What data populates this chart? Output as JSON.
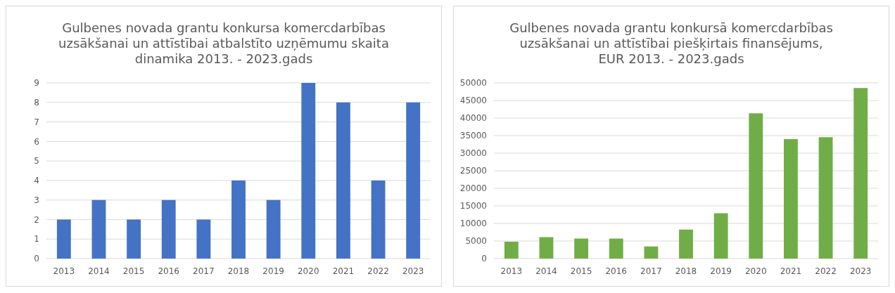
{
  "chart_data": [
    {
      "type": "bar",
      "title": "Gulbenes novada grantu konkursa komercdarbības uzsākšanai un attīstībai atbalstīto uzņēmumu skaita dinamika 2013. - 2023.gads",
      "categories": [
        "2013",
        "2014",
        "2015",
        "2016",
        "2017",
        "2018",
        "2019",
        "2020",
        "2021",
        "2022",
        "2023"
      ],
      "values": [
        2,
        3,
        2,
        3,
        2,
        4,
        3,
        9,
        8,
        4,
        8
      ],
      "color": "#4472c4",
      "ylim": [
        0,
        9
      ],
      "yticks": [
        0,
        1,
        2,
        3,
        4,
        5,
        6,
        7,
        8,
        9
      ],
      "grid": "y"
    },
    {
      "type": "bar",
      "title": "Gulbenes novada grantu konkursā komercdarbības uzsākšanai un attīstībai piešķirtais finansējums, EUR 2013. - 2023.gads",
      "categories": [
        "2013",
        "2014",
        "2015",
        "2016",
        "2017",
        "2018",
        "2019",
        "2020",
        "2021",
        "2022",
        "2023"
      ],
      "values": [
        4800,
        6100,
        5700,
        5700,
        3450,
        8250,
        12900,
        41350,
        34000,
        34550,
        48550
      ],
      "color": "#70ad47",
      "ylim": [
        0,
        50000
      ],
      "yticks": [
        0,
        5000,
        10000,
        15000,
        20000,
        25000,
        30000,
        35000,
        40000,
        45000,
        50000
      ],
      "grid": "y"
    }
  ]
}
